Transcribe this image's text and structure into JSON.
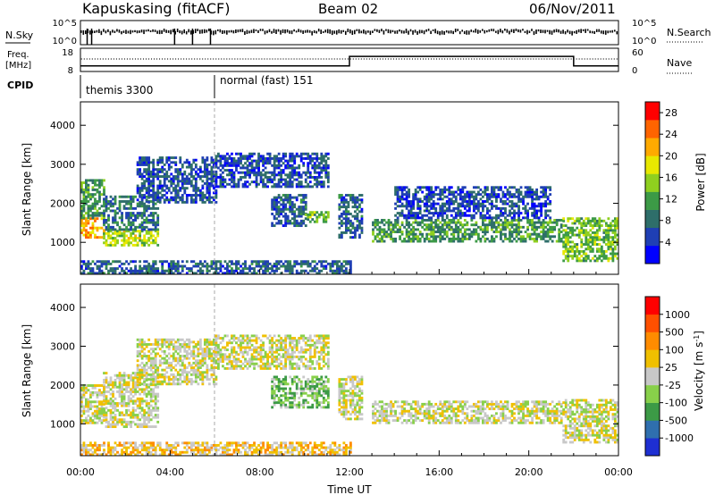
{
  "header": {
    "station": "Kapuskasing (fitACF)",
    "beam": "Beam 02",
    "date": "06/Nov/2011"
  },
  "status_panels": {
    "nsky_label": "N.Sky",
    "nsearch_label": "N.Search",
    "nsky_ticks": [
      "10^5",
      "10^0"
    ],
    "nsearch_ticks": [
      "10^5",
      "10^0"
    ],
    "freq_label_line1": "Freq.",
    "freq_label_line2": "[MHz]",
    "freq_ticks": [
      "18",
      "8"
    ],
    "nave_label": "Nave",
    "nave_ticks": [
      "60",
      "0"
    ],
    "cpid_label": "CPID",
    "cpid_modes": [
      {
        "name": "themis 3300",
        "start_hour": 0
      },
      {
        "name": "normal (fast) 151",
        "start_hour": 6
      }
    ],
    "freq_series": {
      "hours": [
        0,
        1,
        2,
        3,
        4,
        5,
        6,
        7,
        8,
        9,
        10,
        11,
        12,
        13,
        14,
        15,
        16,
        17,
        18,
        19,
        20,
        21,
        22,
        23,
        24
      ],
      "values_mhz": [
        10.4,
        10.4,
        10.4,
        10.4,
        10.4,
        10.4,
        10.4,
        10.4,
        10.4,
        10.4,
        10.4,
        10.4,
        14.5,
        14.5,
        14.5,
        14.5,
        14.5,
        14.5,
        14.5,
        14.5,
        14.5,
        14.5,
        10.4,
        10.4,
        10.4
      ]
    }
  },
  "chart_data": [
    {
      "type": "heatmap",
      "title": "",
      "parameter": "Power",
      "xlabel": "Time UT",
      "ylabel": "Slant Range [km]",
      "xlim_hours": [
        0,
        24
      ],
      "ylim_km": [
        180,
        4600
      ],
      "x_tick_labels": [
        "00:00",
        "04:00",
        "08:00",
        "12:00",
        "16:00",
        "20:00",
        "00:00"
      ],
      "y_ticks": [
        1000,
        2000,
        3000,
        4000
      ],
      "colorbar": {
        "label": "Power [dB]",
        "ticks": [
          4,
          8,
          12,
          16,
          20,
          24,
          28
        ],
        "range": [
          0,
          30
        ],
        "colors": [
          "#0000ff",
          "#1f3fb4",
          "#2e6e6a",
          "#3c9a46",
          "#8fcf1f",
          "#e8e800",
          "#ffaa00",
          "#ff6400",
          "#ff0000"
        ]
      },
      "regions": [
        {
          "t": [
            0.0,
            1.0
          ],
          "r": [
            1100,
            1600
          ],
          "level": 0.75
        },
        {
          "t": [
            0.0,
            1.0
          ],
          "r": [
            1600,
            2600
          ],
          "level": 0.35
        },
        {
          "t": [
            1.0,
            3.5
          ],
          "r": [
            900,
            1300
          ],
          "level": 0.55
        },
        {
          "t": [
            1.0,
            3.5
          ],
          "r": [
            1300,
            2200
          ],
          "level": 0.25
        },
        {
          "t": [
            2.5,
            6.0
          ],
          "r": [
            2000,
            3200
          ],
          "level": 0.15
        },
        {
          "t": [
            6.0,
            11.0
          ],
          "r": [
            2400,
            3300
          ],
          "level": 0.15
        },
        {
          "t": [
            8.5,
            10.0
          ],
          "r": [
            1400,
            2200
          ],
          "level": 0.2
        },
        {
          "t": [
            10.0,
            11.0
          ],
          "r": [
            1500,
            1800
          ],
          "level": 0.45
        },
        {
          "t": [
            11.5,
            12.5
          ],
          "r": [
            1100,
            2200
          ],
          "level": 0.2
        },
        {
          "t": [
            13.0,
            21.5
          ],
          "r": [
            1000,
            1600
          ],
          "level": 0.35
        },
        {
          "t": [
            14.0,
            21.0
          ],
          "r": [
            1600,
            2400
          ],
          "level": 0.15
        },
        {
          "t": [
            21.5,
            24.0
          ],
          "r": [
            500,
            1600
          ],
          "level": 0.45
        },
        {
          "t": [
            0.0,
            12.0
          ],
          "r": [
            180,
            500
          ],
          "level": 0.2
        }
      ]
    },
    {
      "type": "heatmap",
      "title": "",
      "parameter": "Velocity",
      "xlabel": "Time UT",
      "ylabel": "Slant Range [km]",
      "xlim_hours": [
        0,
        24
      ],
      "ylim_km": [
        180,
        4600
      ],
      "x_tick_labels": [
        "00:00",
        "04:00",
        "08:00",
        "12:00",
        "16:00",
        "20:00",
        "00:00"
      ],
      "y_ticks": [
        1000,
        2000,
        3000,
        4000
      ],
      "colorbar": {
        "label": "Velocity [m s^-1]",
        "ticks": [
          1000,
          500,
          100,
          25,
          -25,
          -100,
          -500,
          -1000
        ],
        "colors": [
          "#1e2fd2",
          "#2f6fae",
          "#3c9a46",
          "#88d04a",
          "#c8c8c8",
          "#f0c000",
          "#ff8c00",
          "#ff5000",
          "#ff0000"
        ]
      },
      "regions": [
        {
          "t": [
            0.0,
            1.0
          ],
          "r": [
            1000,
            2000
          ],
          "level": 0.5
        },
        {
          "t": [
            1.0,
            3.5
          ],
          "r": [
            900,
            2300
          ],
          "level": 0.5
        },
        {
          "t": [
            2.5,
            6.0
          ],
          "r": [
            2000,
            3200
          ],
          "level": 0.5
        },
        {
          "t": [
            6.0,
            11.0
          ],
          "r": [
            2400,
            3300
          ],
          "level": 0.5
        },
        {
          "t": [
            8.5,
            11.0
          ],
          "r": [
            1400,
            2200
          ],
          "level": 0.35
        },
        {
          "t": [
            11.5,
            12.5
          ],
          "r": [
            1100,
            2200
          ],
          "level": 0.5
        },
        {
          "t": [
            13.0,
            21.5
          ],
          "r": [
            1000,
            1600
          ],
          "level": 0.5
        },
        {
          "t": [
            21.5,
            24.0
          ],
          "r": [
            500,
            1600
          ],
          "level": 0.5
        },
        {
          "t": [
            0.0,
            12.0
          ],
          "r": [
            180,
            500
          ],
          "level": 0.62
        }
      ]
    }
  ]
}
